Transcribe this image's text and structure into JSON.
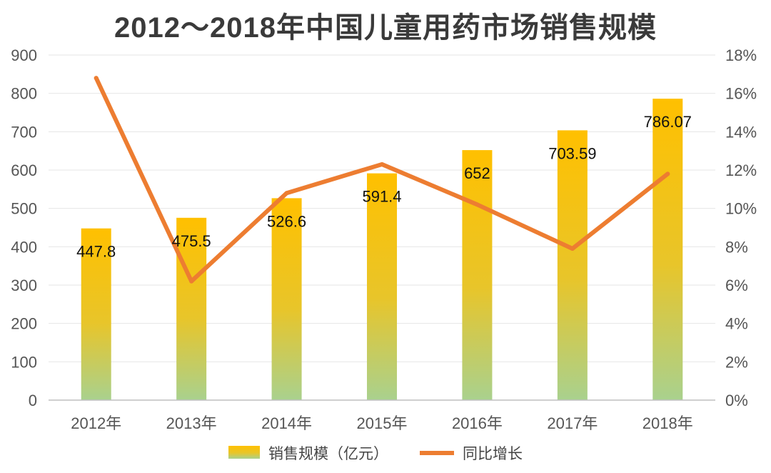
{
  "chart_data": {
    "type": "bar",
    "title": "2012～2018年中国儿童用药市场销售规模",
    "categories": [
      "2012年",
      "2013年",
      "2014年",
      "2015年",
      "2016年",
      "2017年",
      "2018年"
    ],
    "series": [
      {
        "name": "销售规模（亿元）",
        "kind": "bar",
        "axis": "left",
        "values": [
          447.8,
          475.5,
          526.6,
          591.4,
          652,
          703.59,
          786.07
        ],
        "labels": [
          "447.8",
          "475.5",
          "526.6",
          "591.4",
          "652",
          "703.59",
          "786.07"
        ]
      },
      {
        "name": "同比增长",
        "kind": "line",
        "axis": "right",
        "values": [
          16.8,
          6.2,
          10.8,
          12.3,
          10.2,
          7.9,
          11.8
        ]
      }
    ],
    "y_left": {
      "min": 0,
      "max": 900,
      "step": 100,
      "ticks": [
        "0",
        "100",
        "200",
        "300",
        "400",
        "500",
        "600",
        "700",
        "800",
        "900"
      ]
    },
    "y_right": {
      "min": 0,
      "max": 18,
      "step": 2,
      "ticks": [
        "0%",
        "2%",
        "4%",
        "6%",
        "8%",
        "10%",
        "12%",
        "14%",
        "16%",
        "18%"
      ]
    },
    "grid": true,
    "legend": "bottom-center",
    "colors": {
      "bar_top": "#FFC000",
      "bar_bottom": "#A9D18E",
      "line": "#ED7D31",
      "grid": "#E6E6E6",
      "axis": "#BFBFBF"
    }
  }
}
